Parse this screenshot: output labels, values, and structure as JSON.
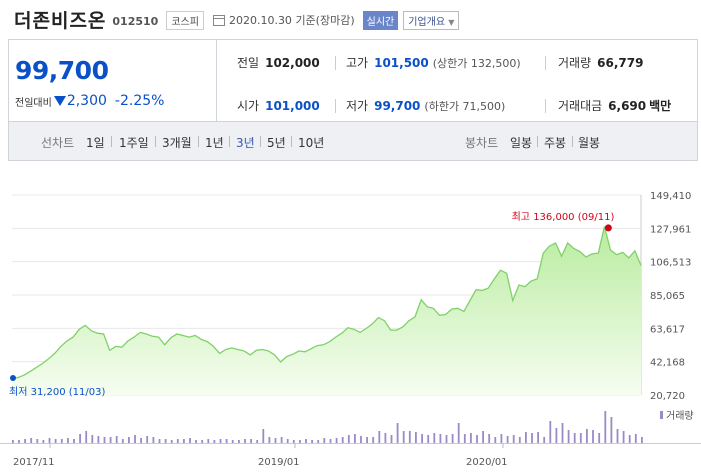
{
  "header": {
    "name": "더존비즈온",
    "code": "012510",
    "market": "코스피",
    "date": "2020.10.30",
    "date_suffix": "기준(장마감)",
    "realtime": "실시간",
    "overview": "기업개요",
    "overview_caret": "▼"
  },
  "price": {
    "current": "99,700",
    "change_label": "전일대비",
    "change": "2,300",
    "change_pct": "-2.25%"
  },
  "stats": {
    "prev_close_label": "전일",
    "prev_close": "102,000",
    "open_label": "시가",
    "open": "101,000",
    "high_label": "고가",
    "high": "101,500",
    "upper_limit": "(상한가 132,500)",
    "low_label": "저가",
    "low": "99,700",
    "lower_limit": "(하한가 71,500)",
    "volume_label": "거래량",
    "volume": "66,779",
    "amount_label": "거래대금",
    "amount": "6,690",
    "amount_unit": "백만"
  },
  "tabs": {
    "line_label": "선차트",
    "periods": [
      "1일",
      "1주일",
      "3개월",
      "1년",
      "3년",
      "5년",
      "10년"
    ],
    "selected": "3년",
    "candle_label": "봉차트",
    "candles": [
      "일봉",
      "주봉",
      "월봉"
    ]
  },
  "colors": {
    "down": "#0a50c8",
    "up": "#d0021b",
    "line": "#7fd16a",
    "volume": "#9a8ac6"
  },
  "chart_data": {
    "type": "area",
    "y_ticks": [
      "149,410",
      "127,961",
      "106,513",
      "85,065",
      "63,617",
      "42,168",
      "20,720"
    ],
    "ylim": [
      20720,
      149410
    ],
    "x_ticks": [
      "2017/11",
      "2019/01",
      "2020/01"
    ],
    "max_label": "최고 136,000 (09/11)",
    "min_label": "최저 31,200 (11/03)",
    "volume_legend": "거래량",
    "price": [
      31200,
      32000,
      33500,
      36000,
      38500,
      41000,
      44000,
      47500,
      52000,
      55500,
      58000,
      63000,
      65500,
      62000,
      60500,
      60000,
      49500,
      52000,
      51500,
      55500,
      58000,
      61000,
      60000,
      58500,
      58000,
      53000,
      57500,
      60000,
      59000,
      58000,
      59000,
      56500,
      55000,
      52000,
      47500,
      50000,
      51000,
      50000,
      49000,
      46500,
      49500,
      50000,
      49000,
      46500,
      42000,
      45500,
      47000,
      49000,
      48500,
      50500,
      52500,
      53000,
      55000,
      58000,
      60500,
      64000,
      63000,
      61000,
      63500,
      66500,
      70500,
      68500,
      62500,
      62500,
      64500,
      68500,
      71000,
      82000,
      77500,
      76500,
      72000,
      72500,
      76000,
      76500,
      74500,
      81500,
      88500,
      88000,
      89500,
      95500,
      101000,
      99000,
      81500,
      91500,
      90500,
      94000,
      95500,
      112000,
      116500,
      118500,
      110000,
      118500,
      115000,
      113000,
      109500,
      111500,
      112000,
      129000,
      114000,
      111000,
      112500,
      109000,
      113500,
      104000
    ],
    "volume": [
      3,
      3,
      4,
      5,
      4,
      3,
      5,
      4,
      4,
      5,
      4,
      9,
      12,
      8,
      7,
      6,
      6,
      7,
      4,
      6,
      8,
      5,
      7,
      6,
      4,
      4,
      3,
      4,
      4,
      5,
      3,
      3,
      4,
      3,
      4,
      4,
      3,
      3,
      4,
      4,
      3,
      14,
      6,
      5,
      6,
      4,
      3,
      3,
      4,
      3,
      3,
      5,
      4,
      5,
      6,
      8,
      9,
      7,
      6,
      6,
      12,
      10,
      8,
      20,
      12,
      12,
      11,
      9,
      8,
      10,
      9,
      8,
      9,
      20,
      9,
      10,
      8,
      12,
      9,
      6,
      9,
      7,
      8,
      6,
      11,
      10,
      11,
      6,
      22,
      15,
      20,
      13,
      10,
      10,
      14,
      13,
      10,
      32,
      26,
      14,
      12,
      8,
      9,
      6
    ]
  }
}
